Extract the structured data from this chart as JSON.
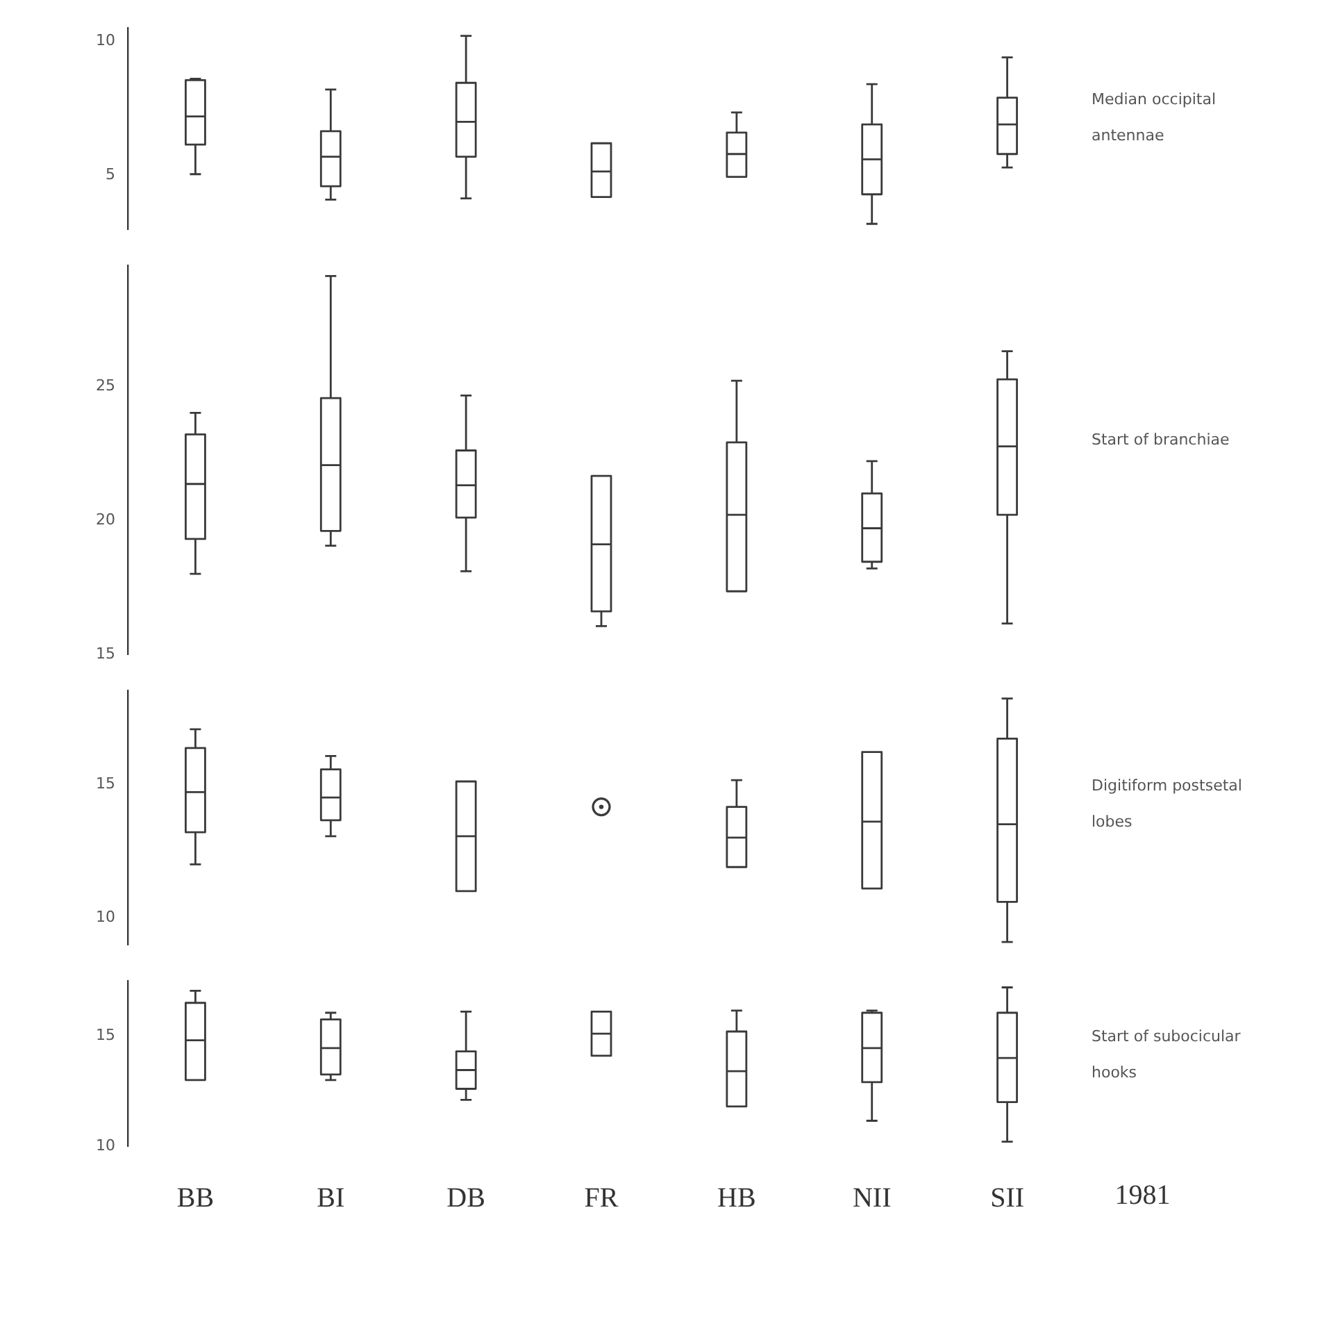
{
  "chart_data": [
    {
      "type": "box",
      "annotations": [
        "Median occipital antennae"
      ],
      "categories": [
        "BB",
        "BI",
        "DB",
        "FR",
        "HB",
        "NII",
        "SII"
      ],
      "color": "#3a3a3a",
      "ylim": [
        3,
        10.5
      ],
      "yticks": [
        5,
        10
      ],
      "tick_labels": "y",
      "boxes": [
        {
          "low": 5.05,
          "q1": 6.15,
          "median": 7.2,
          "q3": 8.55,
          "high": 8.6
        },
        {
          "low": 4.1,
          "q1": 4.6,
          "median": 5.7,
          "q3": 6.65,
          "high": 8.2
        },
        {
          "low": 4.15,
          "q1": 5.7,
          "median": 7.0,
          "q3": 8.45,
          "high": 10.2
        },
        {
          "low": 4.2,
          "q1": 4.2,
          "median": 5.15,
          "q3": 6.2,
          "high": 6.2
        },
        {
          "low": 4.95,
          "q1": 4.95,
          "median": 5.8,
          "q3": 6.6,
          "high": 7.35
        },
        {
          "low": 3.2,
          "q1": 4.3,
          "median": 5.6,
          "q3": 6.9,
          "high": 8.4
        },
        {
          "low": 5.3,
          "q1": 5.8,
          "median": 6.9,
          "q3": 7.9,
          "high": 9.4
        }
      ]
    },
    {
      "type": "box",
      "annotations": [
        "Start of branchiae"
      ],
      "categories": [
        "BB",
        "BI",
        "DB",
        "FR",
        "HB",
        "NII",
        "SII"
      ],
      "color": "#3a3a3a",
      "ylim": [
        15,
        29.5
      ],
      "yticks": [
        15,
        20,
        25
      ],
      "tick_labels": "y",
      "boxes": [
        {
          "low": 18.0,
          "q1": 19.3,
          "median": 21.35,
          "q3": 23.2,
          "high": 24.0
        },
        {
          "low": 19.05,
          "q1": 19.6,
          "median": 22.05,
          "q3": 24.55,
          "high": 29.1
        },
        {
          "low": 18.1,
          "q1": 20.1,
          "median": 21.3,
          "q3": 22.6,
          "high": 24.65
        },
        {
          "low": 16.05,
          "q1": 16.6,
          "median": 19.1,
          "q3": 21.65,
          "high": 21.65
        },
        {
          "low": 17.35,
          "q1": 17.35,
          "median": 20.2,
          "q3": 22.9,
          "high": 25.2
        },
        {
          "low": 18.2,
          "q1": 18.45,
          "median": 19.7,
          "q3": 21.0,
          "high": 22.2
        },
        {
          "low": 16.15,
          "q1": 20.2,
          "median": 22.75,
          "q3": 25.25,
          "high": 26.3
        }
      ]
    },
    {
      "type": "box",
      "annotations": [
        "Digitiform postsetal lobes"
      ],
      "categories": [
        "BB",
        "BI",
        "DB",
        "FR",
        "HB",
        "NII",
        "SII"
      ],
      "color": "#3a3a3a",
      "ylim": [
        9,
        18.5
      ],
      "yticks": [
        10,
        15
      ],
      "tick_labels": "y",
      "marker": "circle",
      "series": [
        {
          "type": "scatter",
          "x": [
            "FR"
          ],
          "values": [
            14.15
          ]
        }
      ],
      "boxes": [
        {
          "low": 12.0,
          "q1": 13.2,
          "median": 14.7,
          "q3": 16.35,
          "high": 17.05
        },
        {
          "low": 13.05,
          "q1": 13.65,
          "median": 14.5,
          "q3": 15.55,
          "high": 16.05
        },
        {
          "low": 11.0,
          "q1": 11.0,
          "median": 13.05,
          "q3": 15.1,
          "high": 15.1
        },
        null,
        {
          "low": 11.9,
          "q1": 11.9,
          "median": 13.0,
          "q3": 14.15,
          "high": 15.15
        },
        {
          "low": 11.1,
          "q1": 11.1,
          "median": 13.6,
          "q3": 16.2,
          "high": 16.2
        },
        {
          "low": 9.1,
          "q1": 10.6,
          "median": 13.5,
          "q3": 16.7,
          "high": 18.2
        }
      ]
    },
    {
      "type": "box",
      "annotations": [
        "Start of subocicular hooks",
        "1981"
      ],
      "categories": [
        "BB",
        "BI",
        "DB",
        "FR",
        "HB",
        "NII",
        "SII"
      ],
      "color": "#3a3a3a",
      "ylim": [
        10,
        17.5
      ],
      "yticks": [
        10,
        15
      ],
      "boxes": [
        {
          "low": 13.0,
          "q1": 13.0,
          "median": 14.8,
          "q3": 16.5,
          "high": 17.05
        },
        {
          "low": 13.0,
          "q1": 13.25,
          "median": 14.45,
          "q3": 15.75,
          "high": 16.05
        },
        {
          "low": 12.1,
          "q1": 12.6,
          "median": 13.45,
          "q3": 14.3,
          "high": 16.1
        },
        {
          "low": 14.1,
          "q1": 14.1,
          "median": 15.1,
          "q3": 16.1,
          "high": 16.1
        },
        {
          "low": 11.8,
          "q1": 11.8,
          "median": 13.4,
          "q3": 15.2,
          "high": 16.15
        },
        {
          "low": 11.15,
          "q1": 12.9,
          "median": 14.45,
          "q3": 16.05,
          "high": 16.15
        },
        {
          "low": 10.2,
          "q1": 12.0,
          "median": 14.0,
          "q3": 16.05,
          "high": 17.2
        }
      ]
    }
  ]
}
